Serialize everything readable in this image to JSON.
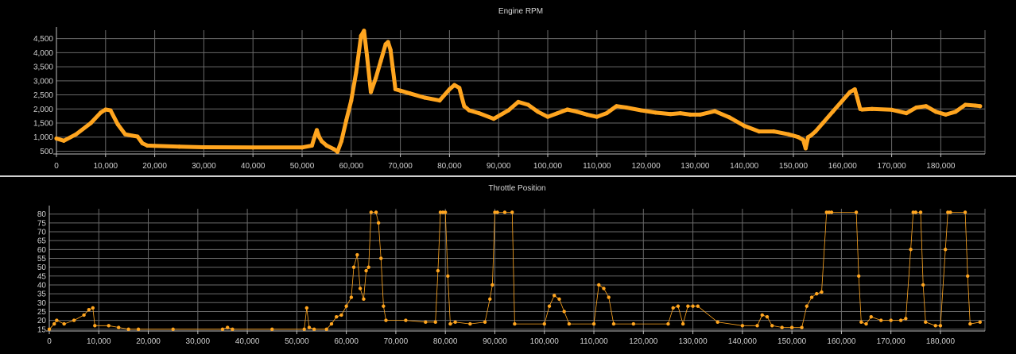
{
  "chart_data": [
    {
      "type": "scatter",
      "title": "Engine RPM",
      "xlabel": "",
      "ylabel": "",
      "xlim": [
        0,
        189000
      ],
      "ylim": [
        400,
        4800
      ],
      "xticks": [
        0,
        10000,
        20000,
        30000,
        40000,
        50000,
        60000,
        70000,
        80000,
        90000,
        100000,
        110000,
        120000,
        130000,
        140000,
        150000,
        160000,
        170000,
        180000
      ],
      "xtick_labels": [
        "0",
        "10,000",
        "20,000",
        "30,000",
        "40,000",
        "50,000",
        "60,000",
        "70,000",
        "80,000",
        "90,000",
        "100,000",
        "110,000",
        "120,000",
        "130,000",
        "140,000",
        "150,000",
        "160,000",
        "170,000",
        "180,000"
      ],
      "yticks": [
        500,
        1000,
        1500,
        2000,
        2500,
        3000,
        3500,
        4000,
        4500
      ],
      "ytick_labels": [
        "500",
        "1,000",
        "1,500",
        "2,000",
        "2,500",
        "3,000",
        "3,500",
        "4,000",
        "4,500"
      ],
      "grid": true,
      "color": "#FFA51F",
      "x": [
        0,
        1500,
        4000,
        7000,
        9000,
        10000,
        11000,
        12500,
        14000,
        15500,
        16500,
        17500,
        18500,
        20000,
        25000,
        30000,
        40000,
        50000,
        52000,
        52500,
        53000,
        53500,
        54000,
        55000,
        56500,
        57200,
        58000,
        59000,
        60000,
        61000,
        62000,
        62600,
        63200,
        64000,
        65000,
        66000,
        67000,
        67500,
        68000,
        68500,
        69000,
        70000,
        72000,
        75000,
        78000,
        80000,
        81000,
        82000,
        83000,
        84000,
        86000,
        89000,
        92000,
        94000,
        96000,
        98000,
        100000,
        102000,
        104000,
        106000,
        108000,
        110000,
        112000,
        114000,
        116000,
        119000,
        122000,
        125000,
        127000,
        129000,
        131000,
        134000,
        137000,
        140000,
        143000,
        146000,
        149000,
        151000,
        152000,
        152500,
        153000,
        153500,
        154500,
        156000,
        158000,
        160000,
        161500,
        162500,
        163000,
        163600,
        164000,
        166000,
        170000,
        173000,
        175000,
        177000,
        179000,
        181000,
        183000,
        185000,
        187000,
        188000
      ],
      "y": [
        950,
        870,
        1100,
        1500,
        1870,
        1980,
        1950,
        1450,
        1100,
        1050,
        1020,
        780,
        700,
        690,
        660,
        640,
        630,
        630,
        700,
        980,
        1250,
        1000,
        850,
        700,
        570,
        480,
        850,
        1600,
        2300,
        3300,
        4600,
        4780,
        3900,
        2600,
        3100,
        3700,
        4300,
        4380,
        4100,
        3400,
        2700,
        2650,
        2550,
        2400,
        2300,
        2700,
        2850,
        2750,
        2100,
        1950,
        1850,
        1650,
        1950,
        2250,
        2150,
        1900,
        1720,
        1850,
        1980,
        1900,
        1800,
        1720,
        1850,
        2100,
        2050,
        1950,
        1870,
        1820,
        1850,
        1800,
        1800,
        1920,
        1700,
        1400,
        1200,
        1200,
        1100,
        1000,
        900,
        600,
        1000,
        1050,
        1200,
        1500,
        1900,
        2300,
        2600,
        2700,
        2400,
        2000,
        1980,
        2000,
        1970,
        1850,
        2050,
        2100,
        1900,
        1800,
        1900,
        2150,
        2120,
        2100
      ]
    },
    {
      "type": "scatter",
      "title": "Throttle Position",
      "xlabel": "",
      "ylabel": "",
      "xlim": [
        0,
        189000
      ],
      "ylim": [
        14,
        83
      ],
      "xticks": [
        0,
        10000,
        20000,
        30000,
        40000,
        50000,
        60000,
        70000,
        80000,
        90000,
        100000,
        110000,
        120000,
        130000,
        140000,
        150000,
        160000,
        170000,
        180000
      ],
      "xtick_labels": [
        "0",
        "10,000",
        "20,000",
        "30,000",
        "40,000",
        "50,000",
        "60,000",
        "70,000",
        "80,000",
        "90,000",
        "100,000",
        "110,000",
        "120,000",
        "130,000",
        "140,000",
        "150,000",
        "160,000",
        "170,000",
        "180,000"
      ],
      "yticks": [
        15,
        20,
        25,
        30,
        35,
        40,
        45,
        50,
        55,
        60,
        65,
        70,
        75,
        80
      ],
      "ytick_labels": [
        "15",
        "20",
        "25",
        "30",
        "35",
        "40",
        "45",
        "50",
        "55",
        "60",
        "65",
        "70",
        "75",
        "80"
      ],
      "grid": true,
      "color": "#FFA51F",
      "x": [
        0,
        1000,
        1500,
        3000,
        5000,
        7000,
        8000,
        8800,
        9200,
        12000,
        14000,
        16000,
        18000,
        25000,
        35000,
        36000,
        37000,
        45000,
        51500,
        52000,
        52500,
        53500,
        56000,
        57000,
        58000,
        59000,
        60000,
        61000,
        61500,
        62200,
        62800,
        63500,
        64000,
        64500,
        65000,
        66000,
        66500,
        67000,
        67500,
        68000,
        72000,
        76000,
        78000,
        78500,
        79000,
        79500,
        80000,
        80500,
        81000,
        82000,
        85000,
        88000,
        89000,
        89500,
        90000,
        90500,
        92000,
        93500,
        94000,
        100000,
        101000,
        102000,
        103000,
        104000,
        105000,
        110000,
        111000,
        112000,
        113000,
        114000,
        118000,
        125000,
        126000,
        127000,
        128000,
        129000,
        130000,
        131000,
        135000,
        140000,
        143000,
        144000,
        145000,
        146000,
        148000,
        150000,
        152000,
        153000,
        154000,
        155000,
        156000,
        157000,
        157500,
        158000,
        163000,
        163500,
        164000,
        165000,
        166000,
        168000,
        170000,
        172000,
        173000,
        174000,
        174500,
        175000,
        176000,
        176500,
        177000,
        179000,
        180000,
        181000,
        181500,
        182000,
        185000,
        185500,
        186000,
        188000
      ],
      "y": [
        15,
        18,
        20,
        18,
        20,
        23,
        26,
        27,
        17,
        17,
        16,
        15,
        15,
        15,
        15,
        16,
        15,
        15,
        15,
        27,
        16,
        15,
        15,
        18,
        22,
        23,
        28,
        33,
        50,
        57,
        38,
        32,
        48,
        50,
        81,
        81,
        75,
        55,
        28,
        20,
        20,
        19,
        19,
        48,
        81,
        81,
        81,
        45,
        18,
        19,
        18,
        19,
        32,
        40,
        81,
        81,
        81,
        81,
        18,
        18,
        28,
        34,
        32,
        25,
        18,
        18,
        40,
        38,
        33,
        18,
        18,
        18,
        27,
        28,
        18,
        28,
        28,
        28,
        19,
        17,
        17,
        23,
        22,
        17,
        16,
        16,
        16,
        28,
        33,
        35,
        36,
        81,
        81,
        81,
        81,
        45,
        19,
        18,
        22,
        20,
        20,
        20,
        21,
        60,
        81,
        81,
        81,
        40,
        19,
        17,
        17,
        60,
        81,
        81,
        81,
        45,
        18,
        19
      ]
    }
  ]
}
